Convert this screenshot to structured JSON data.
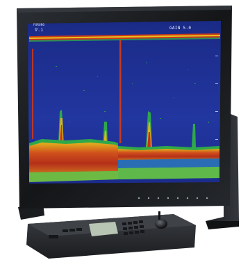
{
  "screen": {
    "brand_mark": "FURUNO",
    "range_readout": "ᐁ.1",
    "gain_readout": "GAIN 5.0"
  },
  "colors": {
    "bezel": "#17191c",
    "sea_background": "#1f2f8a",
    "echo_strong": "#c8321a",
    "echo_medium": "#e0b21c",
    "echo_weak": "#2fa84a",
    "keyboard_body": "#2a2c30"
  },
  "icons": {
    "monitor": "display-monitor-icon",
    "keyboard": "control-keyboard-icon",
    "trackball": "trackball-icon"
  }
}
